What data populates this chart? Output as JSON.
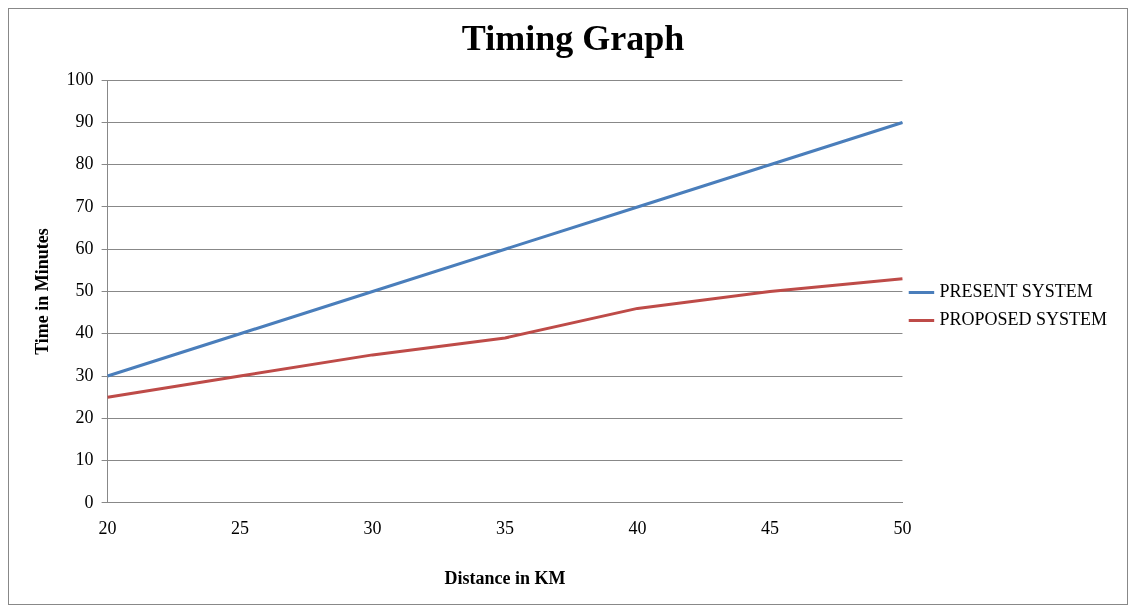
{
  "chart_data": {
    "type": "line",
    "title": "Timing Graph",
    "xlabel": "Distance in KM",
    "ylabel": "Time in Minutes",
    "categories": [
      "20",
      "25",
      "30",
      "35",
      "40",
      "45",
      "50"
    ],
    "series": [
      {
        "name": "PRESENT SYSTEM",
        "color": "#4a7ebb",
        "values": [
          30,
          40,
          50,
          60,
          70,
          80,
          90
        ]
      },
      {
        "name": "PROPOSED SYSTEM",
        "color": "#be4b48",
        "values": [
          25,
          30,
          35,
          39,
          46,
          50,
          53
        ]
      }
    ],
    "ylim": [
      0,
      100
    ],
    "yticks": [
      0,
      10,
      20,
      30,
      40,
      50,
      60,
      70,
      80,
      90,
      100
    ],
    "grid": "y",
    "legend": "right",
    "marker": "none",
    "line_style": "solid"
  }
}
